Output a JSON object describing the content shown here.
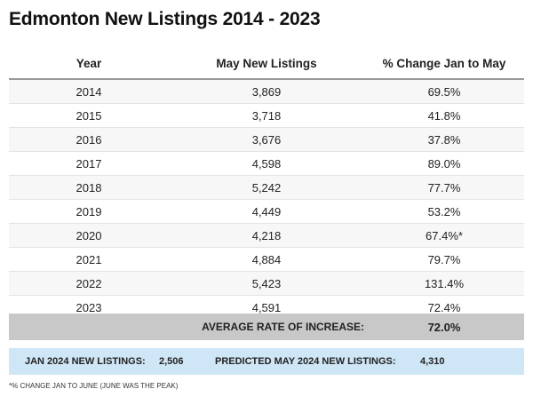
{
  "title": "Edmonton New Listings 2014 - 2023",
  "table": {
    "headers": [
      "Year",
      "May New Listings",
      "% Change Jan to May"
    ],
    "rows": [
      [
        "2014",
        "3,869",
        "69.5%"
      ],
      [
        "2015",
        "3,718",
        "41.8%"
      ],
      [
        "2016",
        "3,676",
        "37.8%"
      ],
      [
        "2017",
        "4,598",
        "89.0%"
      ],
      [
        "2018",
        "5,242",
        "77.7%"
      ],
      [
        "2019",
        "4,449",
        "53.2%"
      ],
      [
        "2020",
        "4,218",
        "67.4%*"
      ],
      [
        "2021",
        "4,884",
        "79.7%"
      ],
      [
        "2022",
        "5,423",
        "131.4%"
      ],
      [
        "2023",
        "4,591",
        "72.4%"
      ]
    ]
  },
  "average": {
    "label": "AVERAGE RATE OF INCREASE:",
    "value": "72.0%"
  },
  "prediction": {
    "jan_label": "JAN 2024 NEW LISTINGS:",
    "jan_value": "2,506",
    "predicted_label": "PREDICTED MAY 2024 NEW LISTINGS:",
    "predicted_value": "4,310"
  },
  "footnote": "*% CHANGE JAN TO JUNE (JUNE WAS THE PEAK)",
  "colors": {
    "average_bg": "#c8c8c8",
    "prediction_bg": "#cfe6f6"
  }
}
